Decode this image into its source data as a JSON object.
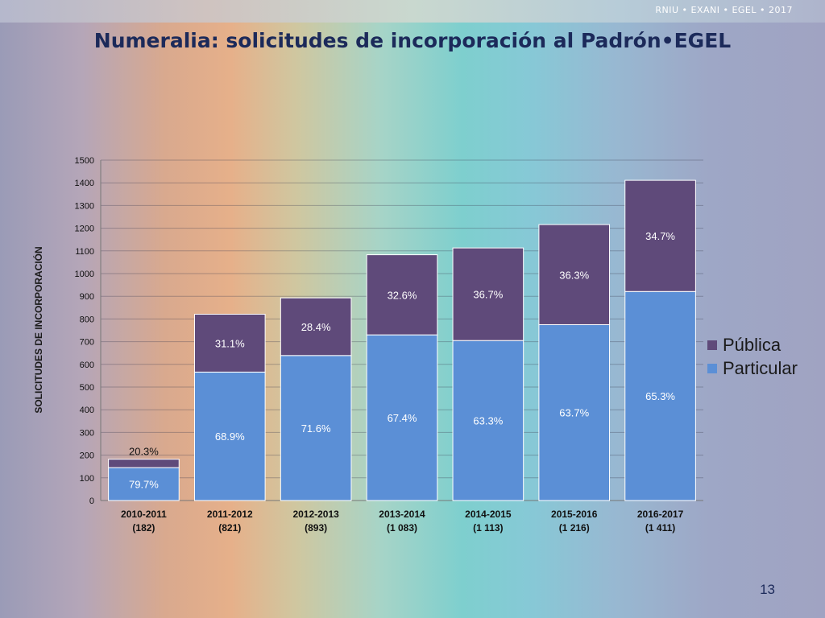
{
  "header": {
    "brand": "RNIU • EXANI • EGEL • 2017"
  },
  "title": "Numeralia: solicitudes de incorporación al Padrón•EGEL",
  "page_number": "13",
  "colors": {
    "publica": "#5f4a7a",
    "particular": "#5b8fd6"
  },
  "chart_data": {
    "type": "bar",
    "stacked": true,
    "ylabel": "SOLICITUDES DE INCORPORACIÓN",
    "ylim": [
      0,
      1500
    ],
    "yticks": [
      "0",
      "100",
      "200",
      "300",
      "400",
      "500",
      "600",
      "700",
      "800",
      "900",
      "1000",
      "1100",
      "1200",
      "1300",
      "1400",
      "1500"
    ],
    "grid": true,
    "legend_position": "right",
    "categories": [
      {
        "period": "2010-2011",
        "total_label": "(182)",
        "total": 182
      },
      {
        "period": "2011-2012",
        "total_label": "(821)",
        "total": 821
      },
      {
        "period": "2012-2013",
        "total_label": "(893)",
        "total": 893
      },
      {
        "period": "2013-2014",
        "total_label": "(1 083)",
        "total": 1083
      },
      {
        "period": "2014-2015",
        "total_label": "(1 113)",
        "total": 1113
      },
      {
        "period": "2015-2016",
        "total_label": "(1 216)",
        "total": 1216
      },
      {
        "period": "2016-2017",
        "total_label": "(1 411)",
        "total": 1411
      }
    ],
    "series": [
      {
        "name": "Particular",
        "key": "particular",
        "values": [
          145,
          566,
          639,
          730,
          705,
          775,
          921
        ],
        "labels": [
          "79.7%",
          "68.9%",
          "71.6%",
          "67.4%",
          "63.3%",
          "63.7%",
          "65.3%"
        ]
      },
      {
        "name": "Pública",
        "key": "publica",
        "values": [
          37,
          255,
          254,
          353,
          408,
          441,
          490
        ],
        "labels": [
          "20.3%",
          "31.1%",
          "28.4%",
          "32.6%",
          "36.7%",
          "36.3%",
          "34.7%"
        ]
      }
    ],
    "legend": [
      "Pública",
      "Particular"
    ]
  }
}
